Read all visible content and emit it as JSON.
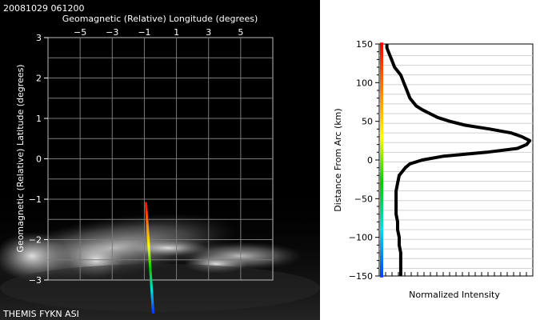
{
  "timestamp": "20081029 061200",
  "footer_label": "THEMIS FYKN ASI",
  "chart_data": [
    {
      "type": "scatter",
      "xlabel": "Geomagnetic (Relative) Longitude (degrees)",
      "ylabel": "Geomagnetic (Relative) Latitude (degrees)",
      "x_ticks": [
        "−5",
        "−3",
        "−1",
        "1",
        "3",
        "5"
      ],
      "x_tick_values": [
        -5,
        -3,
        -1,
        1,
        3,
        5
      ],
      "y_ticks": [
        "3",
        "2",
        "1",
        "0",
        "−1",
        "−2",
        "−3"
      ],
      "y_tick_values": [
        3,
        2,
        1,
        0,
        -1,
        -2,
        -3
      ],
      "xlim": [
        -7,
        7
      ],
      "ylim": [
        -3,
        3
      ],
      "grid": true,
      "meridian_track": {
        "start": [
          -0.9,
          -1.1
        ],
        "end": [
          -0.45,
          -3.8
        ],
        "points": 80,
        "color_scale": [
          "#ff0000",
          "#ff8000",
          "#ffff00",
          "#00cc00",
          "#00e0e0",
          "#0040ff"
        ]
      }
    },
    {
      "type": "line",
      "xlabel": "Normalized Intensity",
      "ylabel": "Distance From Arc (km)",
      "y_ticks": [
        "150",
        "100",
        "50",
        "0",
        "−50",
        "−100",
        "−150"
      ],
      "y_tick_values": [
        150,
        100,
        50,
        0,
        -50,
        -100,
        -150
      ],
      "ylim": [
        -150,
        150
      ],
      "xlim": [
        0,
        1
      ],
      "grid": true,
      "series": [
        {
          "y": [
            150,
            145,
            140,
            130,
            120,
            110,
            100,
            90,
            80,
            70,
            65,
            60,
            55,
            50,
            45,
            40,
            35,
            30,
            25,
            20,
            15,
            10,
            5,
            0,
            -5,
            -10,
            -15,
            -20,
            -30,
            -40,
            -50,
            -60,
            -70,
            -80,
            -90,
            -100,
            -110,
            -120,
            -130,
            -140,
            -150
          ],
          "x": [
            0.05,
            0.05,
            0.06,
            0.08,
            0.1,
            0.14,
            0.16,
            0.18,
            0.2,
            0.24,
            0.28,
            0.33,
            0.38,
            0.46,
            0.56,
            0.72,
            0.86,
            0.93,
            0.98,
            0.96,
            0.9,
            0.7,
            0.42,
            0.28,
            0.2,
            0.17,
            0.15,
            0.13,
            0.12,
            0.11,
            0.11,
            0.11,
            0.11,
            0.12,
            0.12,
            0.13,
            0.13,
            0.14,
            0.14,
            0.14,
            0.14
          ]
        }
      ],
      "y_color_scale": [
        "#ff0000",
        "#ff8000",
        "#ffff00",
        "#00cc00",
        "#00e0e0",
        "#0040ff"
      ]
    }
  ]
}
